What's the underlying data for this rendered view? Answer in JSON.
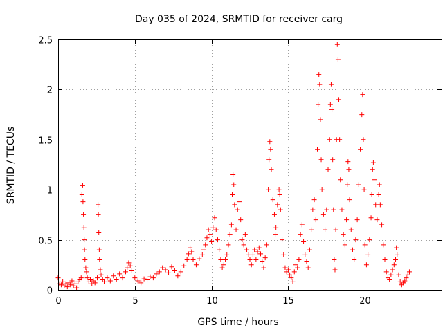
{
  "chart_data": {
    "type": "scatter",
    "title": "Day 035 of 2024, SRMTID for receiver carg",
    "xlabel": "GPS time / hours",
    "ylabel": "SRMTID / TECUs",
    "xlim": [
      0,
      25
    ],
    "ylim": [
      0,
      2.5
    ],
    "xticks": [
      0,
      5,
      10,
      15,
      20
    ],
    "xtick_labels": [
      "0",
      "5",
      "10",
      "15",
      "20"
    ],
    "yticks": [
      0,
      0.5,
      1,
      1.5,
      2,
      2.5
    ],
    "ytick_labels": [
      "0",
      "0.5",
      "1",
      "1.5",
      "2",
      "2.5"
    ],
    "grid": true,
    "marker": "+",
    "color": "#ff0000",
    "series": [
      {
        "name": "SRMTID",
        "points": [
          [
            0.0,
            0.12
          ],
          [
            0.1,
            0.06
          ],
          [
            0.2,
            0.05
          ],
          [
            0.3,
            0.08
          ],
          [
            0.4,
            0.04
          ],
          [
            0.5,
            0.06
          ],
          [
            0.6,
            0.03
          ],
          [
            0.7,
            0.07
          ],
          [
            0.8,
            0.05
          ],
          [
            0.9,
            0.09
          ],
          [
            1.0,
            0.04
          ],
          [
            1.1,
            0.06
          ],
          [
            1.2,
            0.02
          ],
          [
            1.3,
            0.08
          ],
          [
            1.4,
            0.1
          ],
          [
            1.5,
            0.12
          ],
          [
            1.55,
            0.95
          ],
          [
            1.6,
            1.04
          ],
          [
            1.62,
            0.88
          ],
          [
            1.65,
            0.75
          ],
          [
            1.68,
            0.62
          ],
          [
            1.7,
            0.5
          ],
          [
            1.72,
            0.4
          ],
          [
            1.75,
            0.3
          ],
          [
            1.8,
            0.22
          ],
          [
            1.85,
            0.18
          ],
          [
            1.9,
            0.12
          ],
          [
            2.0,
            0.08
          ],
          [
            2.1,
            0.1
          ],
          [
            2.2,
            0.06
          ],
          [
            2.3,
            0.09
          ],
          [
            2.4,
            0.07
          ],
          [
            2.55,
            0.12
          ],
          [
            2.6,
            0.85
          ],
          [
            2.62,
            0.75
          ],
          [
            2.65,
            0.57
          ],
          [
            2.68,
            0.4
          ],
          [
            2.7,
            0.3
          ],
          [
            2.75,
            0.2
          ],
          [
            2.8,
            0.15
          ],
          [
            2.9,
            0.1
          ],
          [
            3.0,
            0.08
          ],
          [
            3.2,
            0.12
          ],
          [
            3.4,
            0.09
          ],
          [
            3.6,
            0.14
          ],
          [
            3.8,
            0.1
          ],
          [
            4.0,
            0.16
          ],
          [
            4.2,
            0.12
          ],
          [
            4.4,
            0.18
          ],
          [
            4.5,
            0.22
          ],
          [
            4.6,
            0.27
          ],
          [
            4.7,
            0.24
          ],
          [
            4.8,
            0.19
          ],
          [
            5.0,
            0.12
          ],
          [
            5.2,
            0.09
          ],
          [
            5.4,
            0.07
          ],
          [
            5.6,
            0.11
          ],
          [
            5.8,
            0.1
          ],
          [
            6.0,
            0.13
          ],
          [
            6.2,
            0.12
          ],
          [
            6.4,
            0.16
          ],
          [
            6.6,
            0.18
          ],
          [
            6.8,
            0.22
          ],
          [
            7.0,
            0.2
          ],
          [
            7.2,
            0.17
          ],
          [
            7.4,
            0.23
          ],
          [
            7.6,
            0.19
          ],
          [
            7.8,
            0.14
          ],
          [
            8.0,
            0.18
          ],
          [
            8.2,
            0.24
          ],
          [
            8.4,
            0.3
          ],
          [
            8.5,
            0.36
          ],
          [
            8.6,
            0.42
          ],
          [
            8.7,
            0.38
          ],
          [
            8.8,
            0.3
          ],
          [
            9.0,
            0.25
          ],
          [
            9.2,
            0.31
          ],
          [
            9.4,
            0.35
          ],
          [
            9.5,
            0.4
          ],
          [
            9.6,
            0.45
          ],
          [
            9.7,
            0.52
          ],
          [
            9.8,
            0.6
          ],
          [
            9.9,
            0.55
          ],
          [
            10.0,
            0.48
          ],
          [
            10.1,
            0.62
          ],
          [
            10.2,
            0.72
          ],
          [
            10.3,
            0.6
          ],
          [
            10.4,
            0.5
          ],
          [
            10.5,
            0.4
          ],
          [
            10.6,
            0.3
          ],
          [
            10.7,
            0.22
          ],
          [
            10.8,
            0.25
          ],
          [
            10.9,
            0.3
          ],
          [
            11.0,
            0.35
          ],
          [
            11.1,
            0.45
          ],
          [
            11.2,
            0.55
          ],
          [
            11.3,
            0.65
          ],
          [
            11.35,
            0.95
          ],
          [
            11.4,
            1.15
          ],
          [
            11.45,
            1.05
          ],
          [
            11.5,
            0.85
          ],
          [
            11.6,
            0.6
          ],
          [
            11.7,
            0.8
          ],
          [
            11.8,
            0.88
          ],
          [
            11.9,
            0.7
          ],
          [
            12.0,
            0.5
          ],
          [
            12.1,
            0.45
          ],
          [
            12.2,
            0.55
          ],
          [
            12.3,
            0.4
          ],
          [
            12.4,
            0.35
          ],
          [
            12.5,
            0.3
          ],
          [
            12.6,
            0.25
          ],
          [
            12.7,
            0.35
          ],
          [
            12.8,
            0.4
          ],
          [
            12.9,
            0.3
          ],
          [
            13.0,
            0.38
          ],
          [
            13.1,
            0.42
          ],
          [
            13.2,
            0.36
          ],
          [
            13.3,
            0.28
          ],
          [
            13.4,
            0.22
          ],
          [
            13.5,
            0.32
          ],
          [
            13.6,
            0.45
          ],
          [
            13.7,
            1.0
          ],
          [
            13.75,
            1.3
          ],
          [
            13.8,
            1.48
          ],
          [
            13.85,
            1.4
          ],
          [
            13.9,
            1.2
          ],
          [
            14.0,
            0.9
          ],
          [
            14.1,
            0.75
          ],
          [
            14.15,
            0.55
          ],
          [
            14.2,
            0.62
          ],
          [
            14.3,
            0.85
          ],
          [
            14.4,
            1.0
          ],
          [
            14.45,
            0.95
          ],
          [
            14.5,
            0.8
          ],
          [
            14.6,
            0.5
          ],
          [
            14.7,
            0.35
          ],
          [
            14.8,
            0.22
          ],
          [
            14.9,
            0.18
          ],
          [
            15.0,
            0.2
          ],
          [
            15.1,
            0.15
          ],
          [
            15.2,
            0.12
          ],
          [
            15.3,
            0.08
          ],
          [
            15.4,
            0.18
          ],
          [
            15.5,
            0.25
          ],
          [
            15.6,
            0.22
          ],
          [
            15.7,
            0.3
          ],
          [
            15.8,
            0.55
          ],
          [
            15.9,
            0.65
          ],
          [
            16.0,
            0.48
          ],
          [
            16.1,
            0.35
          ],
          [
            16.2,
            0.28
          ],
          [
            16.3,
            0.22
          ],
          [
            16.4,
            0.4
          ],
          [
            16.5,
            0.6
          ],
          [
            16.6,
            0.8
          ],
          [
            16.7,
            0.9
          ],
          [
            16.8,
            0.7
          ],
          [
            16.9,
            1.4
          ],
          [
            16.95,
            1.85
          ],
          [
            17.0,
            2.15
          ],
          [
            17.05,
            2.05
          ],
          [
            17.1,
            1.7
          ],
          [
            17.15,
            1.3
          ],
          [
            17.2,
            1.0
          ],
          [
            17.3,
            0.75
          ],
          [
            17.4,
            0.6
          ],
          [
            17.5,
            0.8
          ],
          [
            17.6,
            1.2
          ],
          [
            17.7,
            1.5
          ],
          [
            17.75,
            1.85
          ],
          [
            17.8,
            2.05
          ],
          [
            17.85,
            1.8
          ],
          [
            17.9,
            1.3
          ],
          [
            17.95,
            0.8
          ],
          [
            18.0,
            0.3
          ],
          [
            18.05,
            0.2
          ],
          [
            18.1,
            0.6
          ],
          [
            18.15,
            1.5
          ],
          [
            18.2,
            2.45
          ],
          [
            18.25,
            2.3
          ],
          [
            18.3,
            1.9
          ],
          [
            18.35,
            1.5
          ],
          [
            18.4,
            1.1
          ],
          [
            18.5,
            0.8
          ],
          [
            18.6,
            0.55
          ],
          [
            18.7,
            0.45
          ],
          [
            18.8,
            0.7
          ],
          [
            18.85,
            1.05
          ],
          [
            18.9,
            1.28
          ],
          [
            18.95,
            1.2
          ],
          [
            19.0,
            0.9
          ],
          [
            19.1,
            0.6
          ],
          [
            19.2,
            0.4
          ],
          [
            19.3,
            0.3
          ],
          [
            19.4,
            0.5
          ],
          [
            19.5,
            0.7
          ],
          [
            19.6,
            1.05
          ],
          [
            19.7,
            1.4
          ],
          [
            19.8,
            1.75
          ],
          [
            19.85,
            1.95
          ],
          [
            19.9,
            1.5
          ],
          [
            19.95,
            1.0
          ],
          [
            20.0,
            0.45
          ],
          [
            20.1,
            0.25
          ],
          [
            20.2,
            0.35
          ],
          [
            20.3,
            0.5
          ],
          [
            20.4,
            0.72
          ],
          [
            20.45,
            0.95
          ],
          [
            20.5,
            1.2
          ],
          [
            20.55,
            1.27
          ],
          [
            20.6,
            1.1
          ],
          [
            20.7,
            0.85
          ],
          [
            20.8,
            0.7
          ],
          [
            20.9,
            0.95
          ],
          [
            20.95,
            1.05
          ],
          [
            21.0,
            0.85
          ],
          [
            21.1,
            0.65
          ],
          [
            21.2,
            0.45
          ],
          [
            21.3,
            0.3
          ],
          [
            21.4,
            0.18
          ],
          [
            21.5,
            0.12
          ],
          [
            21.6,
            0.1
          ],
          [
            21.7,
            0.15
          ],
          [
            21.8,
            0.2
          ],
          [
            21.9,
            0.25
          ],
          [
            22.0,
            0.3
          ],
          [
            22.05,
            0.42
          ],
          [
            22.1,
            0.35
          ],
          [
            22.2,
            0.15
          ],
          [
            22.3,
            0.08
          ],
          [
            22.4,
            0.05
          ],
          [
            22.5,
            0.07
          ],
          [
            22.6,
            0.09
          ],
          [
            22.7,
            0.12
          ],
          [
            22.8,
            0.15
          ],
          [
            22.9,
            0.18
          ]
        ]
      }
    ]
  }
}
